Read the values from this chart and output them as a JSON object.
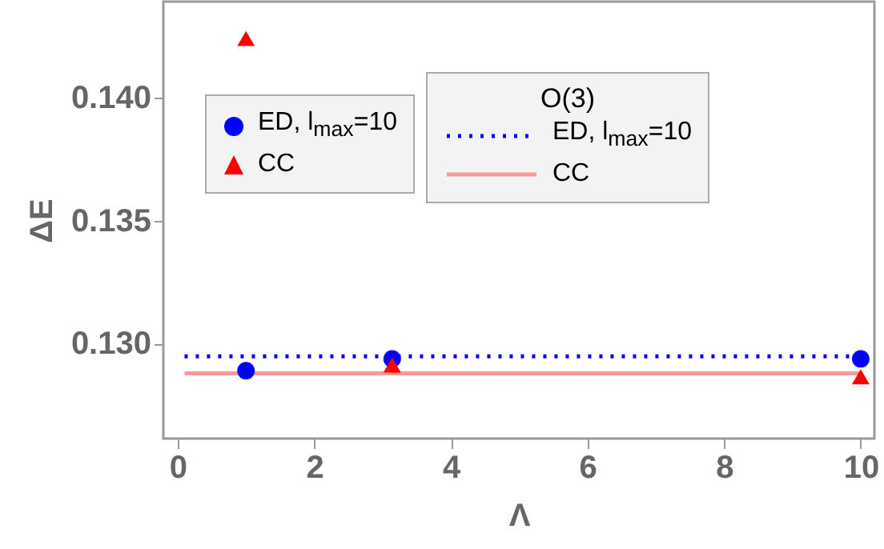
{
  "chart_data": {
    "type": "scatter",
    "xlabel": "Λ",
    "ylabel": "ΔE",
    "legend_title": "O(3)",
    "legend": "top",
    "xlim": [
      -0.21,
      10.2
    ],
    "xticks": [
      0,
      2,
      4,
      6,
      8,
      10
    ],
    "ylim": [
      0.12614,
      0.1439
    ],
    "yticks": [
      {
        "value": 0.13,
        "label": "0.130"
      },
      {
        "value": 0.135,
        "label": "0.135"
      },
      {
        "value": 0.14,
        "label": "0.140"
      }
    ],
    "series": [
      {
        "name": "ED, l$_{max}$=10",
        "marker": "circle",
        "color": "#0000ff",
        "x": [
          1,
          3.14,
          10
        ],
        "values": [
          0.1289,
          0.12938,
          0.12938
        ]
      },
      {
        "name": "CC",
        "marker": "triangle",
        "color": "#ff0000",
        "x": [
          1,
          3.14,
          10
        ],
        "values": [
          0.1424,
          0.12913,
          0.12865
        ]
      },
      {
        "name": "ED, l$_{max}$=10",
        "type": "line",
        "line_style": "dotted",
        "color": "#0000ff",
        "x": [
          0.1,
          10
        ],
        "values": [
          0.12948,
          0.12948
        ]
      },
      {
        "name": "CC",
        "type": "line",
        "line_style": "solid",
        "color": "#f59a9a",
        "x": [
          0.1,
          10
        ],
        "values": [
          0.12879,
          0.12879
        ]
      }
    ]
  }
}
